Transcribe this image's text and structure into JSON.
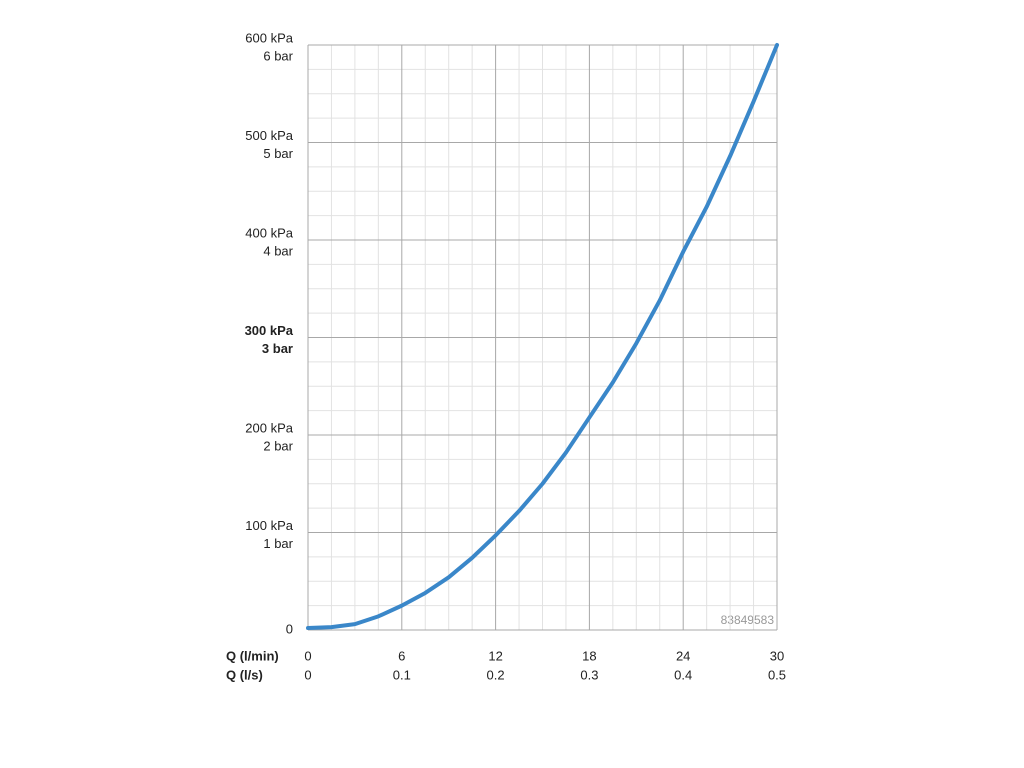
{
  "chart_data": {
    "type": "line",
    "xlabel": "Q (l/min)",
    "x2label": "Q (l/s)",
    "annotation": "83849583",
    "x": [
      0,
      1.5,
      3,
      4.5,
      6,
      7.5,
      9,
      10.5,
      12,
      13.5,
      15,
      16.5,
      18,
      19.5,
      21,
      22.5,
      24,
      25.5,
      27,
      28.5,
      30
    ],
    "series": [
      {
        "color": "#3a87c9",
        "values": [
          2,
          3,
          6,
          14,
          25,
          38,
          54,
          74,
          97,
          122,
          150,
          182,
          218,
          254,
          294,
          338,
          388,
          434,
          486,
          542,
          600
        ]
      }
    ],
    "xlim": [
      0,
      30
    ],
    "xticks": [
      0,
      6,
      12,
      18,
      24,
      30
    ],
    "x2lim": [
      0,
      0.5
    ],
    "x2ticks": [
      0,
      0.1,
      0.2,
      0.3,
      0.4,
      0.5
    ],
    "ylim": [
      0,
      600
    ],
    "yticks": [
      0,
      {
        "value": 100,
        "label": "100 kPa"
      },
      {
        "value": 200,
        "label": "200 kPa"
      },
      {
        "value": 300,
        "label": "300 kPa"
      },
      {
        "value": 400,
        "label": "400 kPa"
      },
      {
        "value": 500,
        "label": "500 kPa"
      },
      {
        "value": 600,
        "label": "600 kPa"
      }
    ],
    "ytick_sublabels": [
      null,
      "1 bar",
      "2 bar",
      "3 bar",
      "4 bar",
      "5 bar",
      "6 bar"
    ],
    "emphasized_ytick": 300,
    "grid": true
  }
}
